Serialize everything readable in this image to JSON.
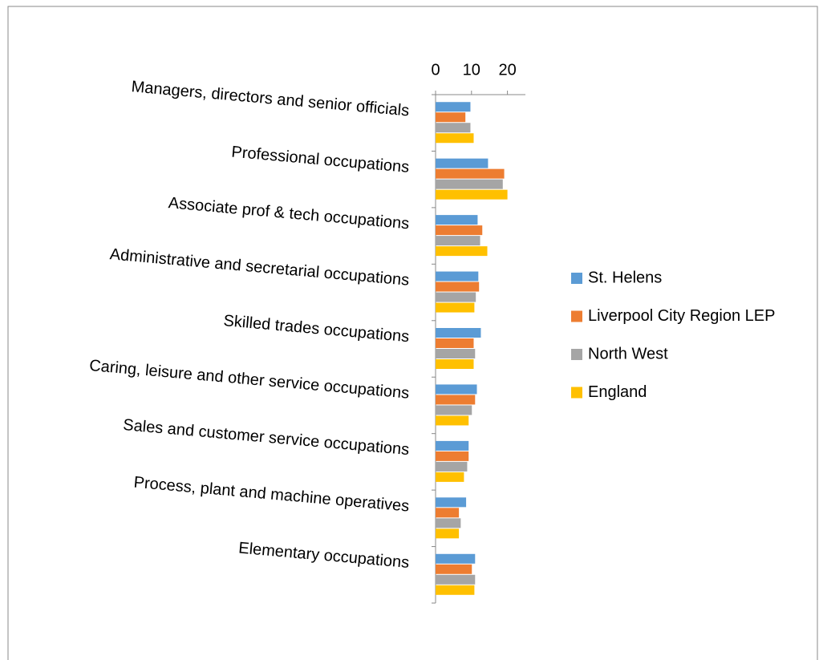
{
  "chart_data": {
    "type": "bar",
    "orientation": "horizontal",
    "categories": [
      "Managers, directors and senior officials",
      "Professional occupations",
      "Associate prof & tech occupations",
      "Administrative and secretarial occupations",
      "Skilled trades occupations",
      "Caring, leisure and other service occupations",
      "Sales and customer service occupations",
      "Process, plant and machine operatives",
      "Elementary occupations"
    ],
    "series": [
      {
        "name": "St. Helens",
        "color": "#5b9bd5",
        "values": [
          9.7,
          14.6,
          11.7,
          11.9,
          12.6,
          11.5,
          9.2,
          8.5,
          11.0
        ]
      },
      {
        "name": "Liverpool City Region LEP",
        "color": "#ed7d31",
        "values": [
          8.3,
          19.1,
          13.0,
          12.1,
          10.6,
          11.0,
          9.2,
          6.5,
          10.1
        ]
      },
      {
        "name": "North West",
        "color": "#a5a5a5",
        "values": [
          9.7,
          18.7,
          12.4,
          11.2,
          11.0,
          10.1,
          8.8,
          7.0,
          11.0
        ]
      },
      {
        "name": "England",
        "color": "#ffc000",
        "values": [
          10.6,
          20.0,
          14.4,
          10.8,
          10.6,
          9.2,
          7.9,
          6.5,
          10.8
        ]
      }
    ],
    "xlim": [
      0,
      25
    ],
    "xticks": [
      0,
      10,
      20
    ],
    "legend": "right"
  }
}
